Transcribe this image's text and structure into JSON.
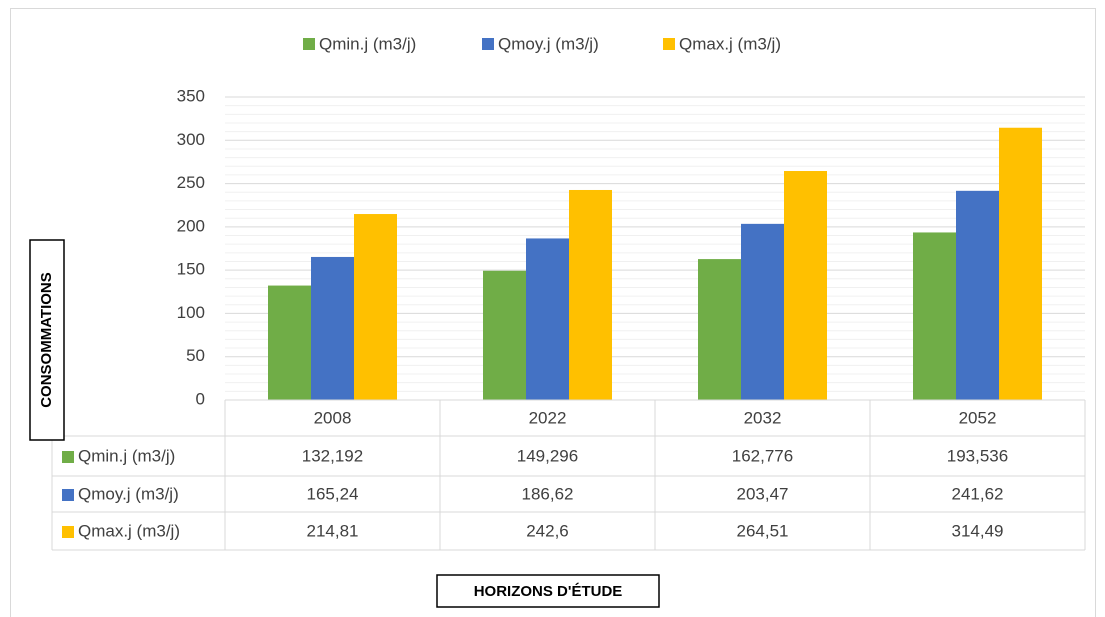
{
  "chart_data": {
    "type": "bar",
    "y_axis_title": "CONSOMMATIONS",
    "x_axis_title": "HORIZONS D'ÉTUDE",
    "categories": [
      "2008",
      "2022",
      "2032",
      "2052"
    ],
    "series": [
      {
        "name": "Qmin.j (m3/j)",
        "color": "#70ad47",
        "values": [
          132.192,
          149.296,
          162.776,
          193.536
        ],
        "value_labels": [
          "132,192",
          "149,296",
          "162,776",
          "193,536"
        ]
      },
      {
        "name": "Qmoy.j (m3/j)",
        "color": "#4472c4",
        "values": [
          165.24,
          186.62,
          203.47,
          241.62
        ],
        "value_labels": [
          "165,24",
          "186,62",
          "203,47",
          "241,62"
        ]
      },
      {
        "name": "Qmax.j (m3/j)",
        "color": "#ffc000",
        "values": [
          214.81,
          242.6,
          264.51,
          314.49
        ],
        "value_labels": [
          "214,81",
          "242,6",
          "264,51",
          "314,49"
        ]
      }
    ],
    "ylim": [
      0,
      350
    ],
    "yticks": [
      0,
      50,
      100,
      150,
      200,
      250,
      300,
      350
    ],
    "minor_yticks": [
      10,
      20,
      30,
      40,
      60,
      70,
      80,
      90,
      110,
      120,
      130,
      140,
      160,
      170,
      180,
      190,
      210,
      220,
      230,
      240,
      260,
      270,
      280,
      290,
      310,
      320,
      330,
      340
    ],
    "grid": true,
    "legend": "top",
    "data_table": true
  }
}
